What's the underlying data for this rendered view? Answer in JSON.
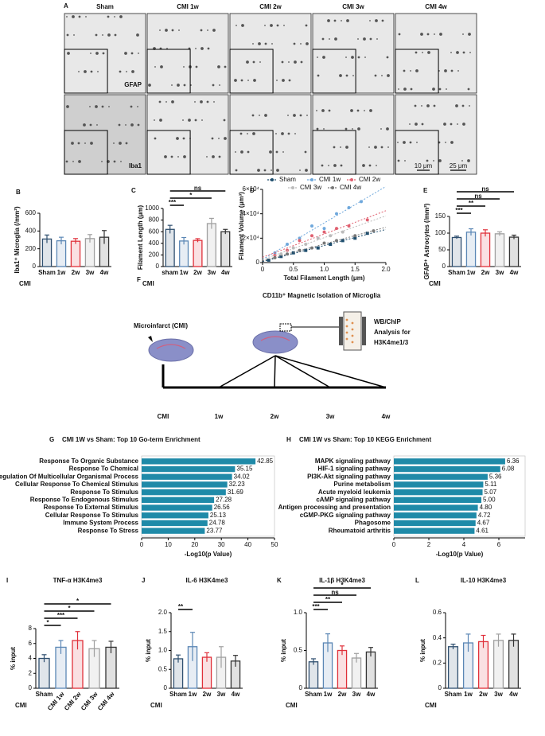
{
  "panel_a": {
    "panel": "A",
    "columns": [
      "Sham",
      "CMI 1w",
      "CMI  2w",
      "CMI  3w",
      "CMI 4w"
    ],
    "rows": [
      "GFAP",
      "Iba1"
    ],
    "scale_bars": [
      "10 μm",
      "25 μm"
    ]
  },
  "panel_f": {
    "panel": "F",
    "title": "CD11b⁺ Magnetic Isolation of Microglia",
    "left_label": "Microinfarct (CMI)",
    "right_label": [
      "WB/ChIP",
      "Analysis for",
      "H3K4me1/3"
    ],
    "timeline": [
      "CMI",
      "1w",
      "2w",
      "3w",
      "4w"
    ]
  },
  "chart_data": [
    {
      "panel": "B",
      "type": "bar",
      "ylabel": "Iba1⁺ Microglia (/mm²)",
      "xlabel": "CMI",
      "categories": [
        "Sham",
        "1w",
        "2w",
        "3w",
        "4w"
      ],
      "values": [
        310,
        290,
        285,
        315,
        330
      ],
      "errors": [
        45,
        40,
        30,
        45,
        75
      ],
      "colors": [
        "#2f4f6f",
        "#5b87b5",
        "#e0303a",
        "#a0a0a0",
        "#333333"
      ],
      "ylim": [
        0,
        600
      ],
      "yticks": [
        0,
        200,
        400,
        600
      ],
      "annotations": []
    },
    {
      "panel": "C",
      "type": "bar",
      "ylabel": "Filament Length (μm)",
      "xlabel": "CMI",
      "categories": [
        "sham",
        "1w",
        "2w",
        "3w",
        "4w"
      ],
      "values": [
        640,
        440,
        450,
        740,
        600
      ],
      "errors": [
        70,
        60,
        30,
        90,
        40
      ],
      "colors": [
        "#2f4f6f",
        "#5b87b5",
        "#e0303a",
        "#a0a0a0",
        "#333333"
      ],
      "ylim": [
        0,
        1000
      ],
      "yticks": [
        0,
        200,
        400,
        600,
        800,
        1000
      ],
      "annotations": [
        {
          "text": "***",
          "between": [
            0,
            1
          ]
        },
        {
          "text": "*",
          "between": [
            0,
            3
          ]
        },
        {
          "text": "ns",
          "between": [
            0,
            4
          ]
        }
      ]
    },
    {
      "panel": "D",
      "type": "scatter",
      "ylabel": "Filament Volume (μm³)",
      "xlabel": "Total Filament Length (μm)",
      "xlim": [
        0,
        2
      ],
      "xticks": [
        0,
        0.5,
        {
          "value": 1,
          "label": "1.0"
        },
        1.5,
        {
          "value": 2,
          "label": "2.0"
        }
      ],
      "ylim": [
        0,
        60000
      ],
      "yticks": [
        0,
        {
          "value": 20000,
          "label": "2×10⁴"
        },
        {
          "value": 40000,
          "label": "4×10⁴"
        },
        {
          "value": 60000,
          "label": "6×10⁴"
        }
      ],
      "series": [
        {
          "name": "Sham",
          "color": "#1f4e6e",
          "x": [
            0.1,
            0.3,
            0.5,
            0.7,
            0.9,
            1.1,
            1.3,
            1.5,
            1.7
          ],
          "values": [
            2000,
            5000,
            8000,
            10000,
            12000,
            15000,
            18000,
            20000,
            24000
          ]
        },
        {
          "name": "CMI 1w",
          "color": "#6fa8dc",
          "x": [
            0.2,
            0.4,
            0.6,
            0.8,
            1.0,
            1.2,
            1.4,
            1.6
          ],
          "values": [
            8000,
            15000,
            20000,
            30000,
            28000,
            40000,
            45000,
            50000
          ]
        },
        {
          "name": "CMI 2w",
          "color": "#e06070",
          "x": [
            0.2,
            0.4,
            0.6,
            0.8,
            1.0,
            1.2,
            1.4,
            1.7
          ],
          "values": [
            6000,
            10000,
            18000,
            22000,
            25000,
            28000,
            30000,
            35000
          ]
        },
        {
          "name": "CMI 3w",
          "color": "#bbbbbb",
          "x": [
            0.3,
            0.5,
            0.7,
            0.9,
            1.1,
            1.3
          ],
          "values": [
            7000,
            12000,
            15000,
            20000,
            22000,
            25000
          ]
        },
        {
          "name": "CMI 4w",
          "color": "#777777",
          "x": [
            0.2,
            0.4,
            0.6,
            0.8,
            1.0,
            1.2,
            1.5,
            1.8
          ],
          "values": [
            4000,
            7000,
            10000,
            12000,
            16000,
            18000,
            22000,
            26000
          ]
        }
      ]
    },
    {
      "panel": "E",
      "type": "bar",
      "ylabel": "GFAP⁺ Astrocytes (/mm²)",
      "xlabel": "CMI",
      "categories": [
        "Sham",
        "1w",
        "2w",
        "3w",
        "4w"
      ],
      "values": [
        87,
        103,
        100,
        98,
        88
      ],
      "errors": [
        4,
        10,
        10,
        6,
        6
      ],
      "colors": [
        "#2f4f6f",
        "#5b87b5",
        "#e0303a",
        "#a0a0a0",
        "#333333"
      ],
      "ylim": [
        0,
        150
      ],
      "yticks": [
        0,
        50,
        100,
        150
      ],
      "annotations": [
        {
          "text": "***",
          "between": [
            0,
            1
          ]
        },
        {
          "text": "**",
          "between": [
            0,
            2
          ]
        },
        {
          "text": "ns",
          "between": [
            0,
            3
          ]
        },
        {
          "text": "ns",
          "between": [
            0,
            4
          ]
        }
      ]
    },
    {
      "panel": "G",
      "type": "hbar",
      "title": "CMI 1W vs Sham:   Top 10 Go-term Enrichment",
      "xlabel": "-Log10(p Value)",
      "color": "#1f8aa8",
      "categories": [
        "Response To Organic Substance",
        "Response To Chemical",
        "Regulation Of Multicellular Organismal Process",
        "Cellular Response To Chemical Stimulus",
        "Response To Stimulus",
        "Response To Endogenous Stimulus",
        "Response To External Stimulus",
        "Cellular Response To Stimulus",
        "Immune System Process",
        "Response To Stress"
      ],
      "values": [
        42.85,
        35.15,
        34.02,
        32.23,
        31.69,
        27.28,
        26.56,
        25.13,
        24.78,
        23.77
      ],
      "xlim": [
        0,
        50
      ],
      "xticks": [
        0,
        10,
        20,
        30,
        40,
        50
      ]
    },
    {
      "panel": "H",
      "type": "hbar",
      "title": "CMI 1W vs Sham:   Top 10 KEGG Enrichment",
      "xlabel": "-Log10(p Value)",
      "color": "#1f8aa8",
      "categories": [
        "MAPK signaling pathway",
        "HIF-1 signaling pathway",
        "PI3K-Akt signaling pathway",
        "Purine metabolism",
        "Acute myeloid leukemia",
        "cAMP signaling pathway",
        "Antigen processing and presentation",
        "cGMP-PKG signaling pathway",
        "Phagosome",
        "Rheumatoid arthritis"
      ],
      "values": [
        6.36,
        6.08,
        5.36,
        5.11,
        5.07,
        5.0,
        4.8,
        4.72,
        4.67,
        4.61
      ],
      "value_labels": [
        "6.36",
        "6.08",
        "5.36",
        "5.11",
        "5.07",
        "5.00",
        "4.80",
        "4.72",
        "4.67",
        "4.61"
      ],
      "xlim": [
        0,
        7.5
      ],
      "xticks": [
        0,
        2,
        4,
        6
      ]
    },
    {
      "panel": "I",
      "type": "bar",
      "title": "TNF-α H3K4me3",
      "ylabel": "% input",
      "xlabel": "CMI",
      "categories": [
        "Sham",
        "CMI 1w",
        "CMI 2w",
        "CMI 3w",
        "CMI 4w"
      ],
      "values": [
        4.0,
        5.5,
        6.4,
        5.3,
        5.5
      ],
      "errors": [
        0.5,
        0.9,
        1.2,
        1.1,
        0.8
      ],
      "colors": [
        "#2f4f6f",
        "#5b87b5",
        "#e0303a",
        "#a0a0a0",
        "#333333"
      ],
      "ylim": [
        0,
        8
      ],
      "yticks": [
        0,
        2,
        4,
        6,
        8
      ],
      "annotations": [
        {
          "text": "*",
          "between": [
            0,
            1
          ]
        },
        {
          "text": "***",
          "between": [
            0,
            2
          ]
        },
        {
          "text": "*",
          "between": [
            0,
            3
          ]
        },
        {
          "text": "*",
          "between": [
            0,
            4
          ]
        }
      ]
    },
    {
      "panel": "J",
      "type": "bar",
      "title": "IL-6 H3K4me3",
      "ylabel": "% input",
      "xlabel": "CMI",
      "categories": [
        "Sham",
        "1w",
        "2w",
        "3w",
        "4w"
      ],
      "values": [
        0.78,
        1.1,
        0.82,
        0.82,
        0.72
      ],
      "errors": [
        0.1,
        0.38,
        0.12,
        0.28,
        0.15
      ],
      "colors": [
        "#2f4f6f",
        "#5b87b5",
        "#e0303a",
        "#a0a0a0",
        "#333333"
      ],
      "ylim": [
        0,
        2
      ],
      "yticks": [
        0,
        0.5,
        {
          "value": 1,
          "label": "1.0"
        },
        1.5,
        {
          "value": 2,
          "label": "2.0"
        }
      ],
      "annotations": [
        {
          "text": "**",
          "between": [
            0,
            1
          ]
        }
      ]
    },
    {
      "panel": "K",
      "type": "bar",
      "title": "IL-1β H3K4me3",
      "ylabel": "% input",
      "xlabel": "CMI",
      "categories": [
        "Sham",
        "1w",
        "2w",
        "3w",
        "4w"
      ],
      "values": [
        0.35,
        0.6,
        0.5,
        0.4,
        0.48
      ],
      "errors": [
        0.04,
        0.12,
        0.06,
        0.06,
        0.06
      ],
      "colors": [
        "#2f4f6f",
        "#5b87b5",
        "#e0303a",
        "#a0a0a0",
        "#333333"
      ],
      "ylim": [
        0,
        1
      ],
      "yticks": [
        0,
        0.5,
        {
          "value": 1,
          "label": "1.0"
        }
      ],
      "annotations": [
        {
          "text": "***",
          "between": [
            0,
            1
          ]
        },
        {
          "text": "**",
          "between": [
            0,
            2
          ]
        },
        {
          "text": "ns",
          "between": [
            0,
            3
          ]
        },
        {
          "text": "*",
          "between": [
            0,
            4
          ]
        }
      ]
    },
    {
      "panel": "L",
      "type": "bar",
      "title": "IL-10 H3K4me3",
      "ylabel": "% input",
      "xlabel": "CMI",
      "categories": [
        "Sham",
        "1w",
        "2w",
        "3w",
        "4w"
      ],
      "values": [
        0.33,
        0.36,
        0.37,
        0.38,
        0.38
      ],
      "errors": [
        0.02,
        0.07,
        0.05,
        0.05,
        0.05
      ],
      "colors": [
        "#2f4f6f",
        "#5b87b5",
        "#e0303a",
        "#a0a0a0",
        "#333333"
      ],
      "ylim": [
        0,
        0.6
      ],
      "yticks": [
        0,
        0.2,
        0.4,
        0.6
      ],
      "annotations": []
    }
  ]
}
